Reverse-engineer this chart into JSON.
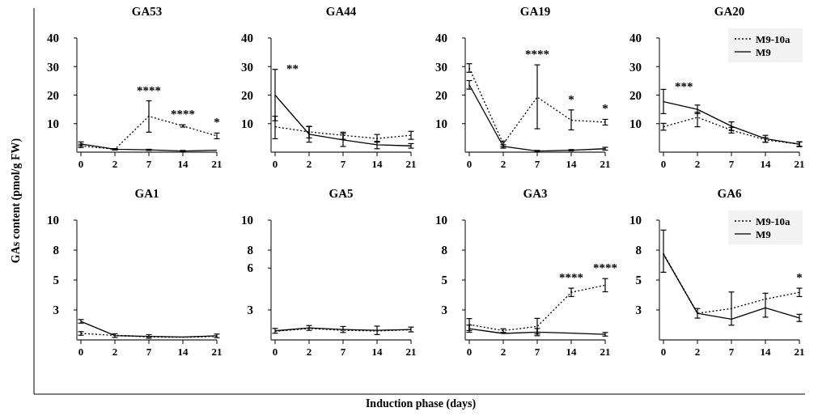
{
  "chart_data": [
    {
      "type": "line",
      "title": "GA53",
      "ylabel": "GAs content  (pmol/g FW)",
      "categories": [
        "0",
        "2",
        "7",
        "14",
        "21"
      ],
      "ylim": [
        0,
        40
      ],
      "yticks": [
        10,
        20,
        30,
        40
      ],
      "legend": false,
      "series": [
        {
          "color": "#000000",
          "line_style": "dotted",
          "values": [
            2.2,
            1.0,
            12.6,
            9.2,
            5.7
          ],
          "errors": [
            0.6,
            0.2,
            [
              7,
              18
            ],
            0.4,
            1
          ]
        },
        {
          "color": "#000000",
          "line_style": "solid",
          "values": [
            2.9,
            1.0,
            0.8,
            0.4,
            0.7
          ],
          "errors": [
            0.7,
            0.2,
            0.2,
            0.2,
            null
          ]
        }
      ],
      "annotations": [
        {
          "text": "****",
          "x": "7",
          "y": 12.6
        },
        {
          "text": "****",
          "x": "14",
          "y": 9.2
        },
        {
          "text": "*",
          "x": "21",
          "y": 5.7
        }
      ]
    },
    {
      "type": "line",
      "title": "GA44",
      "categories": [
        "0",
        "2",
        "7",
        "14",
        "21"
      ],
      "ylim": [
        0,
        40
      ],
      "yticks": [
        10,
        20,
        30,
        40
      ],
      "legend": false,
      "series": [
        {
          "color": "#000000",
          "line_style": "dotted",
          "values": [
            8.9,
            7.1,
            5.9,
            4.8,
            5.9
          ],
          "errors": [
            [
              4.7,
              12.6
            ],
            [
              5,
              9
            ],
            [
              4.5,
              7
            ],
            [
              3.5,
              6.2
            ],
            [
              4.5,
              7.3
            ]
          ]
        },
        {
          "color": "#000000",
          "line_style": "solid",
          "values": [
            20,
            6.3,
            4.3,
            2.6,
            2.2
          ],
          "errors": [
            [
              11,
              29
            ],
            [
              3.5,
              9
            ],
            [
              2,
              6.5
            ],
            [
              1.2,
              3.8
            ],
            0.8
          ]
        }
      ],
      "annotations": [
        {
          "text": "**",
          "x": "0",
          "y": 20
        }
      ]
    },
    {
      "type": "line",
      "title": "GA19",
      "categories": [
        "0",
        "2",
        "7",
        "14",
        "21"
      ],
      "ylim": [
        0,
        40
      ],
      "yticks": [
        10,
        20,
        30,
        40
      ],
      "legend": false,
      "series": [
        {
          "color": "#000000",
          "line_style": "dotted",
          "values": [
            29.5,
            2.9,
            19.3,
            11.2,
            10.5
          ],
          "errors": [
            1.5,
            1,
            [
              8.2,
              30.6
            ],
            [
              7.8,
              14.8
            ],
            1
          ]
        },
        {
          "color": "#000000",
          "line_style": "solid",
          "values": [
            23.6,
            2.0,
            0.4,
            0.7,
            1.2
          ],
          "errors": [
            1.5,
            0.6,
            0.2,
            0.2,
            0.5
          ]
        }
      ],
      "annotations": [
        {
          "text": "****",
          "x": "7",
          "y": 19.3
        },
        {
          "text": "*",
          "x": "14",
          "y": 11.2
        },
        {
          "text": "*",
          "x": "21",
          "y": 10.5
        }
      ]
    },
    {
      "type": "line",
      "title": "GA20",
      "categories": [
        "0",
        "2",
        "7",
        "14",
        "21"
      ],
      "ylim": [
        0,
        40
      ],
      "yticks": [
        10,
        20,
        30,
        40
      ],
      "legend": "top right",
      "series": [
        {
          "name": "M9-10a",
          "color": "#000000",
          "line_style": "dotted",
          "values": [
            8.9,
            12.2,
            7.7,
            4.3,
            2.8
          ],
          "errors": [
            1.2,
            [
              8.9,
              14
            ],
            1,
            0.8,
            0.8
          ]
        },
        {
          "name": "M9",
          "color": "#000000",
          "line_style": "solid",
          "values": [
            17.7,
            15,
            9.1,
            4.7,
            2.8
          ],
          "errors": [
            [
              13.5,
              22
            ],
            1.5,
            1.5,
            1.2,
            0.8
          ]
        }
      ],
      "annotations": [
        {
          "text": "***",
          "x": "0",
          "y": 17.7
        }
      ]
    },
    {
      "type": "line",
      "title": "GA1",
      "categories": [
        "0",
        "2",
        "7",
        "14",
        "21"
      ],
      "ylim": [
        0,
        10
      ],
      "yticks": [
        {
          "value": 2.5,
          "label": "3"
        },
        {
          "value": 5,
          "label": "5"
        },
        {
          "value": 7.5,
          "label": "8"
        },
        10
      ],
      "legend": false,
      "series": [
        {
          "color": "#000000",
          "line_style": "dotted",
          "values": [
            0.54,
            0.38,
            0.25,
            0.22,
            0.29
          ],
          "errors": [
            0.15,
            null,
            null,
            null,
            null
          ]
        },
        {
          "color": "#000000",
          "line_style": "solid",
          "values": [
            1.55,
            0.36,
            0.29,
            0.25,
            0.34
          ],
          "errors": [
            0.15,
            0.15,
            0.15,
            null,
            0.15
          ]
        }
      ]
    },
    {
      "type": "line",
      "title": "GA5",
      "xlabel": "Induction phase (days)",
      "categories": [
        "0",
        "2",
        "7",
        "14",
        "21"
      ],
      "ylim": [
        0,
        10
      ],
      "yticks": [
        {
          "value": 2.5,
          "label": "3"
        },
        6,
        {
          "value": 7.5,
          "label": "8"
        },
        10
      ],
      "legend": false,
      "series": [
        {
          "color": "#000000",
          "line_style": "dotted",
          "values": [
            0.72,
            0.95,
            0.8,
            0.75,
            0.85
          ]
        },
        {
          "color": "#000000",
          "line_style": "solid",
          "values": [
            0.76,
            1.0,
            0.87,
            0.8,
            0.87
          ],
          "errors": [
            0.2,
            0.2,
            0.25,
            0.35,
            0.2
          ]
        }
      ]
    },
    {
      "type": "line",
      "title": "GA3",
      "categories": [
        "0",
        "2",
        "7",
        "14",
        "21"
      ],
      "ylim": [
        0,
        10
      ],
      "yticks": [
        {
          "value": 2.5,
          "label": "3"
        },
        {
          "value": 5,
          "label": "5"
        },
        {
          "value": 7.5,
          "label": "8"
        },
        10
      ],
      "legend": false,
      "series": [
        {
          "color": "#000000",
          "line_style": "dotted",
          "values": [
            1.28,
            0.78,
            1.12,
            3.97,
            4.57
          ],
          "errors": [
            0.5,
            0.15,
            [
              0.5,
              1.8
            ],
            0.35,
            0.55
          ]
        },
        {
          "color": "#000000",
          "line_style": "solid",
          "values": [
            0.94,
            0.54,
            0.65,
            0.56,
            0.47
          ],
          "errors": [
            0.3,
            null,
            0.3,
            null,
            0.15
          ]
        }
      ],
      "annotations": [
        {
          "text": "****",
          "x": "14",
          "y": 3.97
        },
        {
          "text": "****",
          "x": "21",
          "y": 4.57
        }
      ]
    },
    {
      "type": "line",
      "title": "GA6",
      "categories": [
        "0",
        "2",
        "7",
        "14",
        "21"
      ],
      "ylim": [
        0,
        10
      ],
      "yticks": [
        {
          "value": 2.5,
          "label": "3"
        },
        {
          "value": 5,
          "label": "5"
        },
        {
          "value": 7.5,
          "label": "8"
        },
        10
      ],
      "legend": "top right",
      "series": [
        {
          "name": "M9-10a",
          "color": "#000000",
          "line_style": "dotted",
          "values": [
            7.2,
            2.22,
            2.62,
            3.41,
            3.97
          ],
          "errors": [
            null,
            null,
            null,
            null,
            0.35
          ]
        },
        {
          "name": "M9",
          "color": "#000000",
          "line_style": "solid",
          "values": [
            7.15,
            2.22,
            1.73,
            2.67,
            1.84
          ],
          "errors": [
            [
              5.65,
              9.17
            ],
            0.4,
            [
              1.23,
              4.0
            ],
            [
              1.9,
              3.9
            ],
            0.3
          ]
        }
      ],
      "annotations": [
        {
          "text": "*",
          "x": "21",
          "y": 3.97
        }
      ]
    }
  ]
}
